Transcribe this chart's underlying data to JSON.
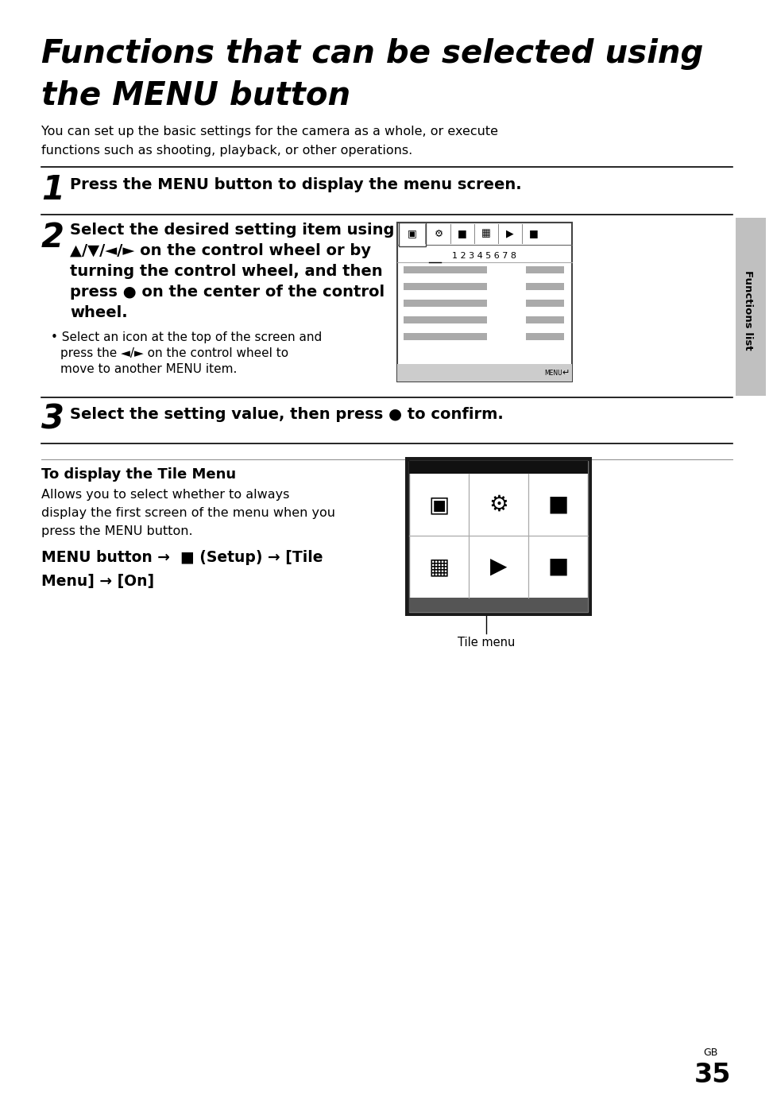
{
  "bg_color": "#ffffff",
  "title_line1": "Functions that can be selected using",
  "title_line2": "the MENU button",
  "intro_line1": "You can set up the basic settings for the camera as a whole, or execute",
  "intro_line2": "functions such as shooting, playback, or other operations.",
  "step1_num": "1",
  "step1_text": "Press the MENU button to display the menu screen.",
  "step2_num": "2",
  "step2_lines": [
    "Select the desired setting item using",
    "▲/▼/◄/► on the control wheel or by",
    "turning the control wheel, and then",
    "press ● on the center of the control",
    "wheel."
  ],
  "step2_bullet_line1": "Select an icon at the top of the screen and",
  "step2_bullet_line2": "press the ◄/► on the control wheel to",
  "step2_bullet_line3": "move to another MENU item.",
  "step3_num": "3",
  "step3_text": "Select the setting value, then press ● to confirm.",
  "tile_section_title": "To display the Tile Menu",
  "tile_text_line1": "Allows you to select whether to always",
  "tile_text_line2": "display the first screen of the menu when you",
  "tile_text_line3": "press the MENU button.",
  "menu_path_line1": "MENU button →  ■ (Setup) → [Tile",
  "menu_path_line2": "Menu] → [On]",
  "tile_caption": "Tile menu",
  "sidebar_text": "Functions list",
  "page_label": "GB",
  "page_num": "35",
  "pw": 954,
  "ph": 1345
}
